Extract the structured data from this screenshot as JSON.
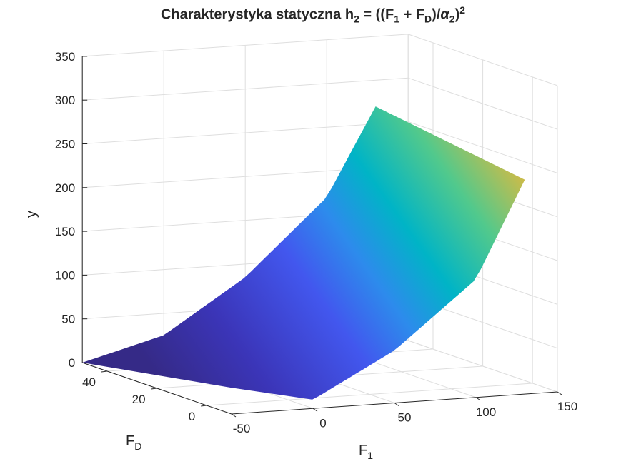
{
  "chart_data": {
    "type": "surface",
    "title_parts": {
      "prefix": "Charakterystyka statyczna h",
      "h_sub": "2",
      "mid": " = ((F",
      "f1_sub": "1",
      "plus": " + F",
      "fd_sub": "D",
      "div": ")/",
      "alpha": "α",
      "alpha_sub": "2",
      "close": ")",
      "power": "2"
    },
    "xlabel": {
      "main": "F",
      "sub": "1"
    },
    "ylabel": {
      "main": "F",
      "sub": "D"
    },
    "zlabel": "y",
    "xlim": [
      -50,
      150
    ],
    "ylim": [
      -10,
      50
    ],
    "zlim": [
      0,
      350
    ],
    "xticks": [
      "-50",
      "0",
      "50",
      "100",
      "150"
    ],
    "yticks": [
      "0",
      "20",
      "40"
    ],
    "zticks": [
      "0",
      "50",
      "100",
      "150",
      "200",
      "250",
      "300",
      "350"
    ],
    "grid": true,
    "colormap": "parula",
    "surface": {
      "f1_range": [
        -50,
        130
      ],
      "fd_range": [
        -10,
        50
      ],
      "edge_fd_minus10": [
        {
          "f1": -50,
          "y": 30
        },
        {
          "f1": 0,
          "y": 10
        },
        {
          "f1": 50,
          "y": 60
        },
        {
          "f1": 100,
          "y": 135
        },
        {
          "f1": 130,
          "y": 245
        }
      ],
      "edge_fd_50": [
        {
          "f1": -50,
          "y": 0
        },
        {
          "f1": 0,
          "y": 25
        },
        {
          "f1": 50,
          "y": 85
        },
        {
          "f1": 100,
          "y": 170
        },
        {
          "f1": 130,
          "y": 270
        }
      ]
    }
  }
}
